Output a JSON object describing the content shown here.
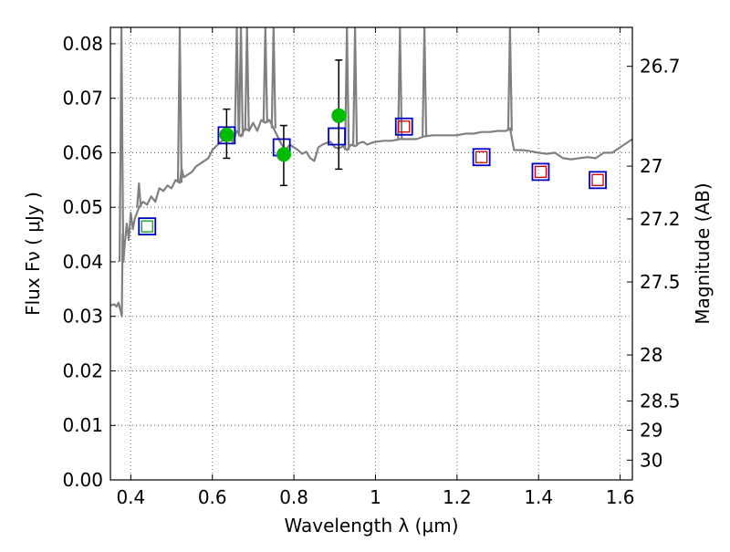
{
  "chart_data": {
    "type": "scatter",
    "xlabel": "Wavelength  λ (μm)",
    "ylabel": "Flux  Fν ( μJy )",
    "y2label": "Magnitude (AB)",
    "xlim": [
      0.35,
      1.63
    ],
    "ylim": [
      0.0,
      0.083
    ],
    "grid": true,
    "x_ticks": [
      0.4,
      0.6,
      0.8,
      1.0,
      1.2,
      1.4,
      1.6
    ],
    "x_tick_labels": [
      "0.4",
      "0.6",
      "0.8",
      "1",
      "1.2",
      "1.4",
      "1.6"
    ],
    "y_ticks": [
      0.0,
      0.01,
      0.02,
      0.03,
      0.04,
      0.05,
      0.06,
      0.07,
      0.08
    ],
    "y_tick_labels": [
      "0.00",
      "0.01",
      "0.02",
      "0.03",
      "0.04",
      "0.05",
      "0.06",
      "0.07",
      "0.08"
    ],
    "mag_ticks": [
      26.7,
      27,
      27.2,
      27.5,
      28,
      28.5,
      29,
      30
    ],
    "mag_tick_labels": [
      "26.7",
      "27",
      "27.2",
      "27.5",
      "28",
      "28.5",
      "29",
      "30"
    ],
    "colors": {
      "spectrum": "#808080",
      "model_box": "#0000cc",
      "observed_point": "#00bb00",
      "inner_box": "#cc0000",
      "inner_box_green": "#00aa00",
      "error_bar": "#000000"
    },
    "spectrum": {
      "x": [
        0.35,
        0.36,
        0.365,
        0.37,
        0.375,
        0.378,
        0.38,
        0.382,
        0.385,
        0.39,
        0.395,
        0.4,
        0.405,
        0.41,
        0.42,
        0.43,
        0.44,
        0.45,
        0.46,
        0.47,
        0.48,
        0.49,
        0.5,
        0.51,
        0.52,
        0.525,
        0.53,
        0.54,
        0.55,
        0.56,
        0.57,
        0.58,
        0.59,
        0.6,
        0.62,
        0.63,
        0.64,
        0.65,
        0.66,
        0.67,
        0.68,
        0.69,
        0.7,
        0.71,
        0.72,
        0.73,
        0.74,
        0.75,
        0.76,
        0.77,
        0.78,
        0.79,
        0.8,
        0.81,
        0.82,
        0.83,
        0.84,
        0.85,
        0.86,
        0.87,
        0.88,
        0.89,
        0.9,
        0.91,
        0.92,
        0.93,
        0.94,
        0.95,
        0.96,
        0.97,
        0.98,
        0.99,
        1.0,
        1.02,
        1.04,
        1.06,
        1.08,
        1.1,
        1.12,
        1.14,
        1.16,
        1.18,
        1.2,
        1.22,
        1.24,
        1.26,
        1.28,
        1.3,
        1.32,
        1.33,
        1.34,
        1.36,
        1.38,
        1.4,
        1.42,
        1.44,
        1.46,
        1.48,
        1.5,
        1.52,
        1.54,
        1.56,
        1.58,
        1.6,
        1.62,
        1.63
      ],
      "y": [
        0.032,
        0.0322,
        0.0318,
        0.0325,
        0.031,
        0.03,
        0.045,
        0.04,
        0.043,
        0.047,
        0.044,
        0.049,
        0.046,
        0.048,
        0.05,
        0.051,
        0.0505,
        0.052,
        0.051,
        0.0535,
        0.053,
        0.054,
        0.0535,
        0.055,
        0.0545,
        0.057,
        0.0555,
        0.056,
        0.0565,
        0.0575,
        0.058,
        0.0585,
        0.059,
        0.0605,
        0.062,
        0.0625,
        0.063,
        0.062,
        0.064,
        0.063,
        0.0645,
        0.064,
        0.0655,
        0.064,
        0.066,
        0.0655,
        0.066,
        0.0645,
        0.063,
        0.0615,
        0.0605,
        0.0615,
        0.061,
        0.0605,
        0.0598,
        0.0602,
        0.059,
        0.0585,
        0.061,
        0.0615,
        0.0618,
        0.062,
        0.061,
        0.0608,
        0.0612,
        0.0605,
        0.0615,
        0.0612,
        0.0618,
        0.062,
        0.0615,
        0.0618,
        0.062,
        0.0622,
        0.0622,
        0.0625,
        0.0625,
        0.0625,
        0.063,
        0.0632,
        0.0632,
        0.0632,
        0.0632,
        0.0635,
        0.0635,
        0.0638,
        0.0638,
        0.064,
        0.064,
        0.0645,
        0.0605,
        0.0605,
        0.0603,
        0.06,
        0.0598,
        0.06,
        0.059,
        0.0588,
        0.059,
        0.0592,
        0.059,
        0.06,
        0.06,
        0.061,
        0.062,
        0.0625
      ]
    },
    "spectrum_spikes": [
      {
        "x": 0.377,
        "peak": 0.083,
        "base": 0.04
      },
      {
        "x": 0.42,
        "peak": 0.0545,
        "base": 0.05
      },
      {
        "x": 0.52,
        "peak": 0.083,
        "base": 0.0545
      },
      {
        "x": 0.66,
        "peak": 0.083,
        "base": 0.064
      },
      {
        "x": 0.67,
        "peak": 0.083,
        "base": 0.063
      },
      {
        "x": 0.685,
        "peak": 0.083,
        "base": 0.064
      },
      {
        "x": 0.73,
        "peak": 0.083,
        "base": 0.0655
      },
      {
        "x": 0.75,
        "peak": 0.083,
        "base": 0.0645
      },
      {
        "x": 0.93,
        "peak": 0.083,
        "base": 0.0605
      },
      {
        "x": 0.95,
        "peak": 0.083,
        "base": 0.0612
      },
      {
        "x": 1.06,
        "peak": 0.083,
        "base": 0.0625
      },
      {
        "x": 1.12,
        "peak": 0.083,
        "base": 0.063
      },
      {
        "x": 1.33,
        "peak": 0.083,
        "base": 0.064
      }
    ],
    "model_boxes": {
      "x": [
        0.44,
        0.635,
        0.77,
        0.905,
        1.07,
        1.26,
        1.405,
        1.545
      ],
      "y": [
        0.0465,
        0.0632,
        0.061,
        0.063,
        0.0648,
        0.0592,
        0.0565,
        0.055
      ]
    },
    "inner_boxes": {
      "x": [
        0.44,
        1.07,
        1.26,
        1.405,
        1.545
      ],
      "y": [
        0.0465,
        0.0648,
        0.0592,
        0.0565,
        0.055
      ]
    },
    "observed_points": {
      "x": [
        0.635,
        0.775,
        0.91
      ],
      "y": [
        0.0633,
        0.0597,
        0.0668
      ],
      "yerr_low": [
        0.059,
        0.054,
        0.057
      ],
      "yerr_high": [
        0.068,
        0.065,
        0.077
      ]
    }
  }
}
